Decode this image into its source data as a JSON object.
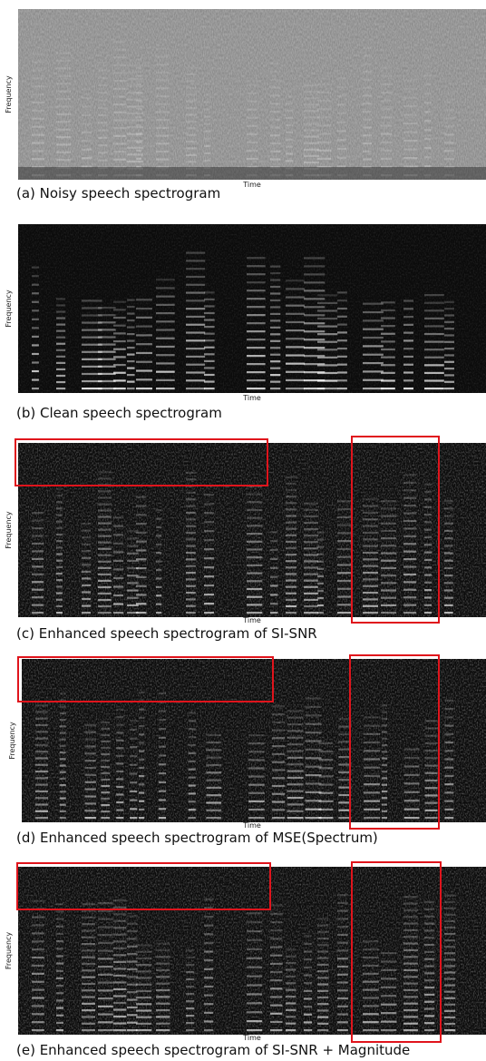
{
  "figure": {
    "panels": [
      {
        "y_label": "Frequency",
        "x_label": "Time",
        "caption": "(a) Noisy speech spectrogram"
      },
      {
        "y_label": "Frequency",
        "x_label": "Time",
        "caption": "(b) Clean speech spectrogram"
      },
      {
        "y_label": "Frequency",
        "x_label": "Time",
        "caption": "(c) Enhanced speech spectrogram of SI-SNR"
      },
      {
        "y_label": "Frequency",
        "x_label": "Time",
        "caption": "(d) Enhanced speech spectrogram of MSE(Spectrum)"
      },
      {
        "y_label": "Frequency",
        "x_label": "Time",
        "caption": "(e) Enhanced speech spectrogram of SI-SNR + Magnitude"
      }
    ]
  }
}
